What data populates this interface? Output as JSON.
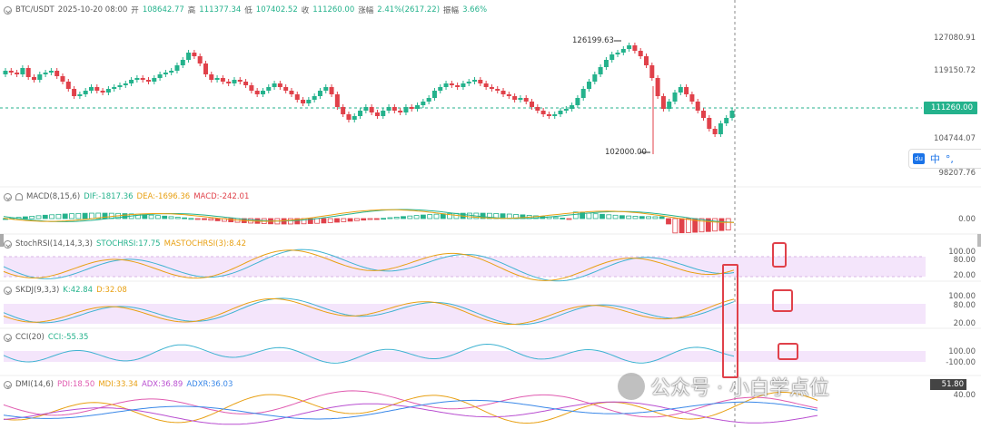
{
  "header": {
    "symbol": "BTC/USDT",
    "datetime": "2025-10-20 08:00",
    "open_label": "开",
    "open": "108642.77",
    "high_label": "高",
    "high": "111377.34",
    "low_label": "低",
    "low": "107402.52",
    "close_label": "收",
    "close": "111260.00",
    "change_label": "涨幅",
    "change": "2.41%(2617.22)",
    "amp_label": "振幅",
    "amp": "3.66%"
  },
  "price_axis": [
    "127080.91",
    "119150.72",
    "104744.07",
    "98207.76"
  ],
  "current_price": "111260.00",
  "annotations": {
    "high": "126199.63",
    "low": "102000.00"
  },
  "indicators": {
    "macd": {
      "name": "MACD(8,15,6)",
      "dif": "DIF:-1817.36",
      "dea": "DEA:-1696.36",
      "macd": "MACD:-242.01",
      "axis": [
        "0.00"
      ]
    },
    "stochrsi": {
      "name": "StochRSI(14,14,3,3)",
      "k": "STOCHRSI:17.75",
      "d": "MASTOCHRSI(3):8.42",
      "axis": [
        "100.00",
        "80.00",
        "20.00"
      ]
    },
    "skdj": {
      "name": "SKDJ(9,3,3)",
      "k": "K:42.84",
      "d": "D:32.08",
      "axis": [
        "100.00",
        "80.00",
        "20.00"
      ]
    },
    "cci": {
      "name": "CCI(20)",
      "cci": "CCI:-55.35",
      "axis": [
        "100.00",
        "-100.00"
      ]
    },
    "dmi": {
      "name": "DMI(14,6)",
      "pdi": "PDI:18.50",
      "mdi": "MDI:33.34",
      "adx": "ADX:36.89",
      "adxr": "ADXR:36.03",
      "axis": [
        "51.80",
        "40.00"
      ]
    }
  },
  "lang": {
    "badge": "du",
    "zh": "中"
  },
  "watermark": "公众号 · 小白学点位"
}
